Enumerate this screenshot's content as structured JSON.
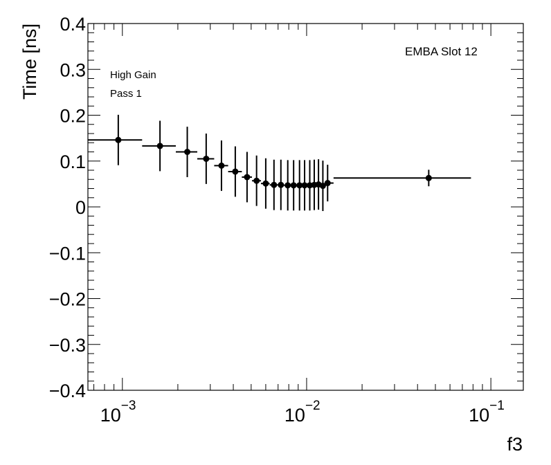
{
  "chart_data": {
    "type": "scatter",
    "title": "",
    "xlabel": "f3",
    "ylabel": "Time [ns]",
    "xscale": "log",
    "xlim": [
      0.00065,
      0.15
    ],
    "ylim": [
      -0.4,
      0.4
    ],
    "y_ticks": [
      0.4,
      0.3,
      0.2,
      0.1,
      0,
      -0.1,
      -0.2,
      -0.3,
      -0.4
    ],
    "y_tick_labels": [
      "0.4",
      "0.3",
      "0.2",
      "0.1",
      "0",
      "−0.1",
      "−0.2",
      "−0.3",
      "−0.4"
    ],
    "x_ticks": [
      {
        "value": 0.001,
        "base": "10",
        "exp": "−3"
      },
      {
        "value": 0.01,
        "base": "10",
        "exp": "−2"
      },
      {
        "value": 0.1,
        "base": "10",
        "exp": "−1"
      }
    ],
    "annotations": {
      "slot": "EMBA Slot 12",
      "gain": "High Gain",
      "pass": "Pass 1"
    },
    "series": [
      {
        "name": "data",
        "points": [
          {
            "x": 0.00095,
            "y": 0.146,
            "xlo": 0.00065,
            "xhi": 0.00128,
            "err": 0.055
          },
          {
            "x": 0.0016,
            "y": 0.133,
            "xlo": 0.00128,
            "xhi": 0.00195,
            "err": 0.055
          },
          {
            "x": 0.00225,
            "y": 0.12,
            "xlo": 0.00195,
            "xhi": 0.00255,
            "err": 0.055
          },
          {
            "x": 0.00285,
            "y": 0.105,
            "xlo": 0.00255,
            "xhi": 0.00315,
            "err": 0.055
          },
          {
            "x": 0.00345,
            "y": 0.09,
            "xlo": 0.00315,
            "xhi": 0.00375,
            "err": 0.055
          },
          {
            "x": 0.0041,
            "y": 0.077,
            "xlo": 0.00375,
            "xhi": 0.00445,
            "err": 0.055
          },
          {
            "x": 0.00475,
            "y": 0.065,
            "xlo": 0.00445,
            "xhi": 0.00505,
            "err": 0.055
          },
          {
            "x": 0.00535,
            "y": 0.057,
            "xlo": 0.00505,
            "xhi": 0.00565,
            "err": 0.055
          },
          {
            "x": 0.006,
            "y": 0.051,
            "xlo": 0.00565,
            "xhi": 0.0063,
            "err": 0.055
          },
          {
            "x": 0.00665,
            "y": 0.048,
            "xlo": 0.0063,
            "xhi": 0.00695,
            "err": 0.055
          },
          {
            "x": 0.00725,
            "y": 0.048,
            "xlo": 0.00695,
            "xhi": 0.00755,
            "err": 0.055
          },
          {
            "x": 0.0079,
            "y": 0.047,
            "xlo": 0.00755,
            "xhi": 0.0082,
            "err": 0.055
          },
          {
            "x": 0.0085,
            "y": 0.047,
            "xlo": 0.0082,
            "xhi": 0.0088,
            "err": 0.055
          },
          {
            "x": 0.00915,
            "y": 0.047,
            "xlo": 0.0088,
            "xhi": 0.00945,
            "err": 0.055
          },
          {
            "x": 0.00975,
            "y": 0.047,
            "xlo": 0.00945,
            "xhi": 0.01005,
            "err": 0.055
          },
          {
            "x": 0.0104,
            "y": 0.047,
            "xlo": 0.01005,
            "xhi": 0.0107,
            "err": 0.055
          },
          {
            "x": 0.011,
            "y": 0.048,
            "xlo": 0.0107,
            "xhi": 0.0113,
            "err": 0.055
          },
          {
            "x": 0.0116,
            "y": 0.049,
            "xlo": 0.0113,
            "xhi": 0.01195,
            "err": 0.055
          },
          {
            "x": 0.01225,
            "y": 0.046,
            "xlo": 0.01195,
            "xhi": 0.0126,
            "err": 0.055
          },
          {
            "x": 0.013,
            "y": 0.052,
            "xlo": 0.0126,
            "xhi": 0.014,
            "err": 0.04
          },
          {
            "x": 0.046,
            "y": 0.063,
            "xlo": 0.014,
            "xhi": 0.078,
            "err": 0.018
          }
        ]
      }
    ]
  }
}
